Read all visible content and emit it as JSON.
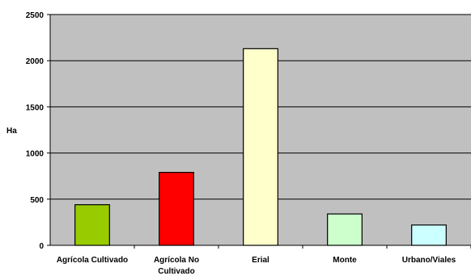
{
  "chart_data": {
    "type": "bar",
    "title": "",
    "xlabel": "",
    "ylabel": "Ha",
    "ylim": [
      0,
      2500
    ],
    "yticks": [
      0,
      500,
      1000,
      1500,
      2000,
      2500
    ],
    "grid": true,
    "categories": [
      [
        "Agrícola Cultivado"
      ],
      [
        "Agrícola No",
        "Cultivado"
      ],
      [
        "Erial"
      ],
      [
        "Monte"
      ],
      [
        "Urbano/Viales"
      ]
    ],
    "values": [
      440,
      790,
      2130,
      340,
      220
    ],
    "colors": [
      "#99cc00",
      "#ff0000",
      "#ffffcc",
      "#ccffcc",
      "#ccffff"
    ],
    "plot_background": "#c0c0c0",
    "gridline_color": "#000000"
  }
}
